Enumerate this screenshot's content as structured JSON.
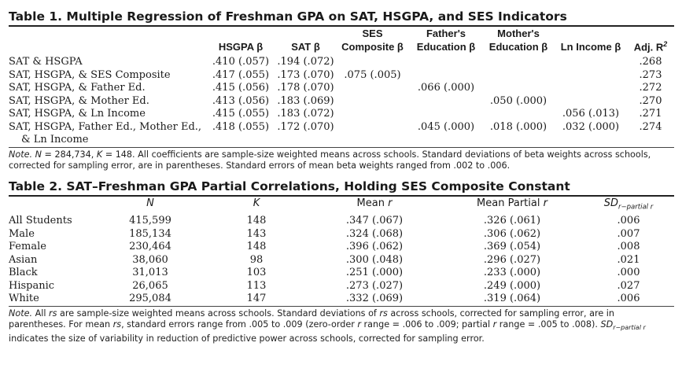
{
  "table1": {
    "title": "Table 1.  Multiple Regression of Freshman GPA on SAT, HSGPA, and SES Indicators",
    "headers": {
      "hsgpa": "HSGPA β",
      "sat": "SAT β",
      "ses_l1": "SES",
      "ses_l2": "Composite β",
      "father_l1": "Father's",
      "father_l2": "Education β",
      "mother_l1": "Mother's",
      "mother_l2": "Education β",
      "lninc": "Ln Income β",
      "adj": "Adj. R",
      "adj_sup": "2"
    },
    "rows": [
      {
        "label": "SAT & HSGPA",
        "label2": "",
        "hsgpa": ".410 (.057)",
        "sat": ".194 (.072)",
        "ses": "",
        "father": "",
        "mother": "",
        "lninc": "",
        "adj": ".268"
      },
      {
        "label": "SAT, HSGPA, & SES Composite",
        "label2": "",
        "hsgpa": ".417 (.055)",
        "sat": ".173 (.070)",
        "ses": ".075 (.005)",
        "father": "",
        "mother": "",
        "lninc": "",
        "adj": ".273"
      },
      {
        "label": "SAT, HSGPA, & Father Ed.",
        "label2": "",
        "hsgpa": ".415 (.056)",
        "sat": ".178 (.070)",
        "ses": "",
        "father": ".066 (.000)",
        "mother": "",
        "lninc": "",
        "adj": ".272"
      },
      {
        "label": "SAT, HSGPA, & Mother Ed.",
        "label2": "",
        "hsgpa": ".413 (.056)",
        "sat": ".183 (.069)",
        "ses": "",
        "father": "",
        "mother": ".050 (.000)",
        "lninc": "",
        "adj": ".270"
      },
      {
        "label": "SAT, HSGPA, & Ln Income",
        "label2": "",
        "hsgpa": ".415 (.055)",
        "sat": ".183 (.072)",
        "ses": "",
        "father": "",
        "mother": "",
        "lninc": ".056 (.013)",
        "adj": ".271"
      },
      {
        "label": "SAT, HSGPA, Father Ed., Mother Ed.,",
        "label2": "& Ln Income",
        "hsgpa": ".418 (.055)",
        "sat": ".172 (.070)",
        "ses": "",
        "father": ".045 (.000)",
        "mother": ".018 (.000)",
        "lninc": ".032 (.000)",
        "adj": ".274"
      }
    ],
    "note": {
      "lead": "Note.",
      "n_var": "N",
      "n_eq": " = 284,734, ",
      "k_var": "K",
      "rest": " = 148. All coefficients are sample-size weighted means across schools. Standard deviations of beta weights across schools, corrected for sampling error, are in parentheses. Standard errors of mean beta weights ranged from .002 to .006."
    }
  },
  "table2": {
    "title": "Table 2.  SAT–Freshman GPA Partial Correlations, Holding SES Composite Constant",
    "headers": {
      "n": "N",
      "k": "K",
      "mean_r_pre": "Mean ",
      "mean_r_var": "r",
      "partial_pre": "Mean Partial ",
      "partial_var": "r",
      "sd": "SD",
      "sd_sub": "r−partial r"
    },
    "rows": [
      {
        "label": "All Students",
        "n": "415,599",
        "k": "148",
        "mean_r": ".347 (.067)",
        "partial": ".326 (.061)",
        "sd": ".006"
      },
      {
        "label": "Male",
        "n": "185,134",
        "k": "143",
        "mean_r": ".324 (.068)",
        "partial": ".306 (.062)",
        "sd": ".007"
      },
      {
        "label": "Female",
        "n": "230,464",
        "k": "148",
        "mean_r": ".396 (.062)",
        "partial": ".369 (.054)",
        "sd": ".008"
      },
      {
        "label": "Asian",
        "n": "38,060",
        "k": "98",
        "mean_r": ".300 (.048)",
        "partial": ".296 (.027)",
        "sd": ".021"
      },
      {
        "label": "Black",
        "n": "31,013",
        "k": "103",
        "mean_r": ".251 (.000)",
        "partial": ".233 (.000)",
        "sd": ".000"
      },
      {
        "label": "Hispanic",
        "n": "26,065",
        "k": "113",
        "mean_r": ".273 (.027)",
        "partial": ".249 (.000)",
        "sd": ".027"
      },
      {
        "label": "White",
        "n": "295,084",
        "k": "147",
        "mean_r": ".332 (.069)",
        "partial": ".319 (.064)",
        "sd": ".006"
      }
    ],
    "note": {
      "lead": "Note.",
      "p1": " All ",
      "rs1": "rs",
      "p2": " are sample-size weighted means across schools. Standard deviations of ",
      "rs2": "rs",
      "p3": " across schools, corrected for sampling error, are in parentheses. For mean ",
      "rs3": "rs",
      "p4": ", standard errors range from .005 to .009 (zero-order ",
      "r1": "r",
      "p5": " range = .006 to .009; partial ",
      "r2": "r",
      "p6": " range = .005 to .008). ",
      "sd": "SD",
      "sd_sub": "r−partial r",
      "p7": " indicates the size of variability in reduction of predictive power across schools, corrected for sampling error."
    }
  }
}
